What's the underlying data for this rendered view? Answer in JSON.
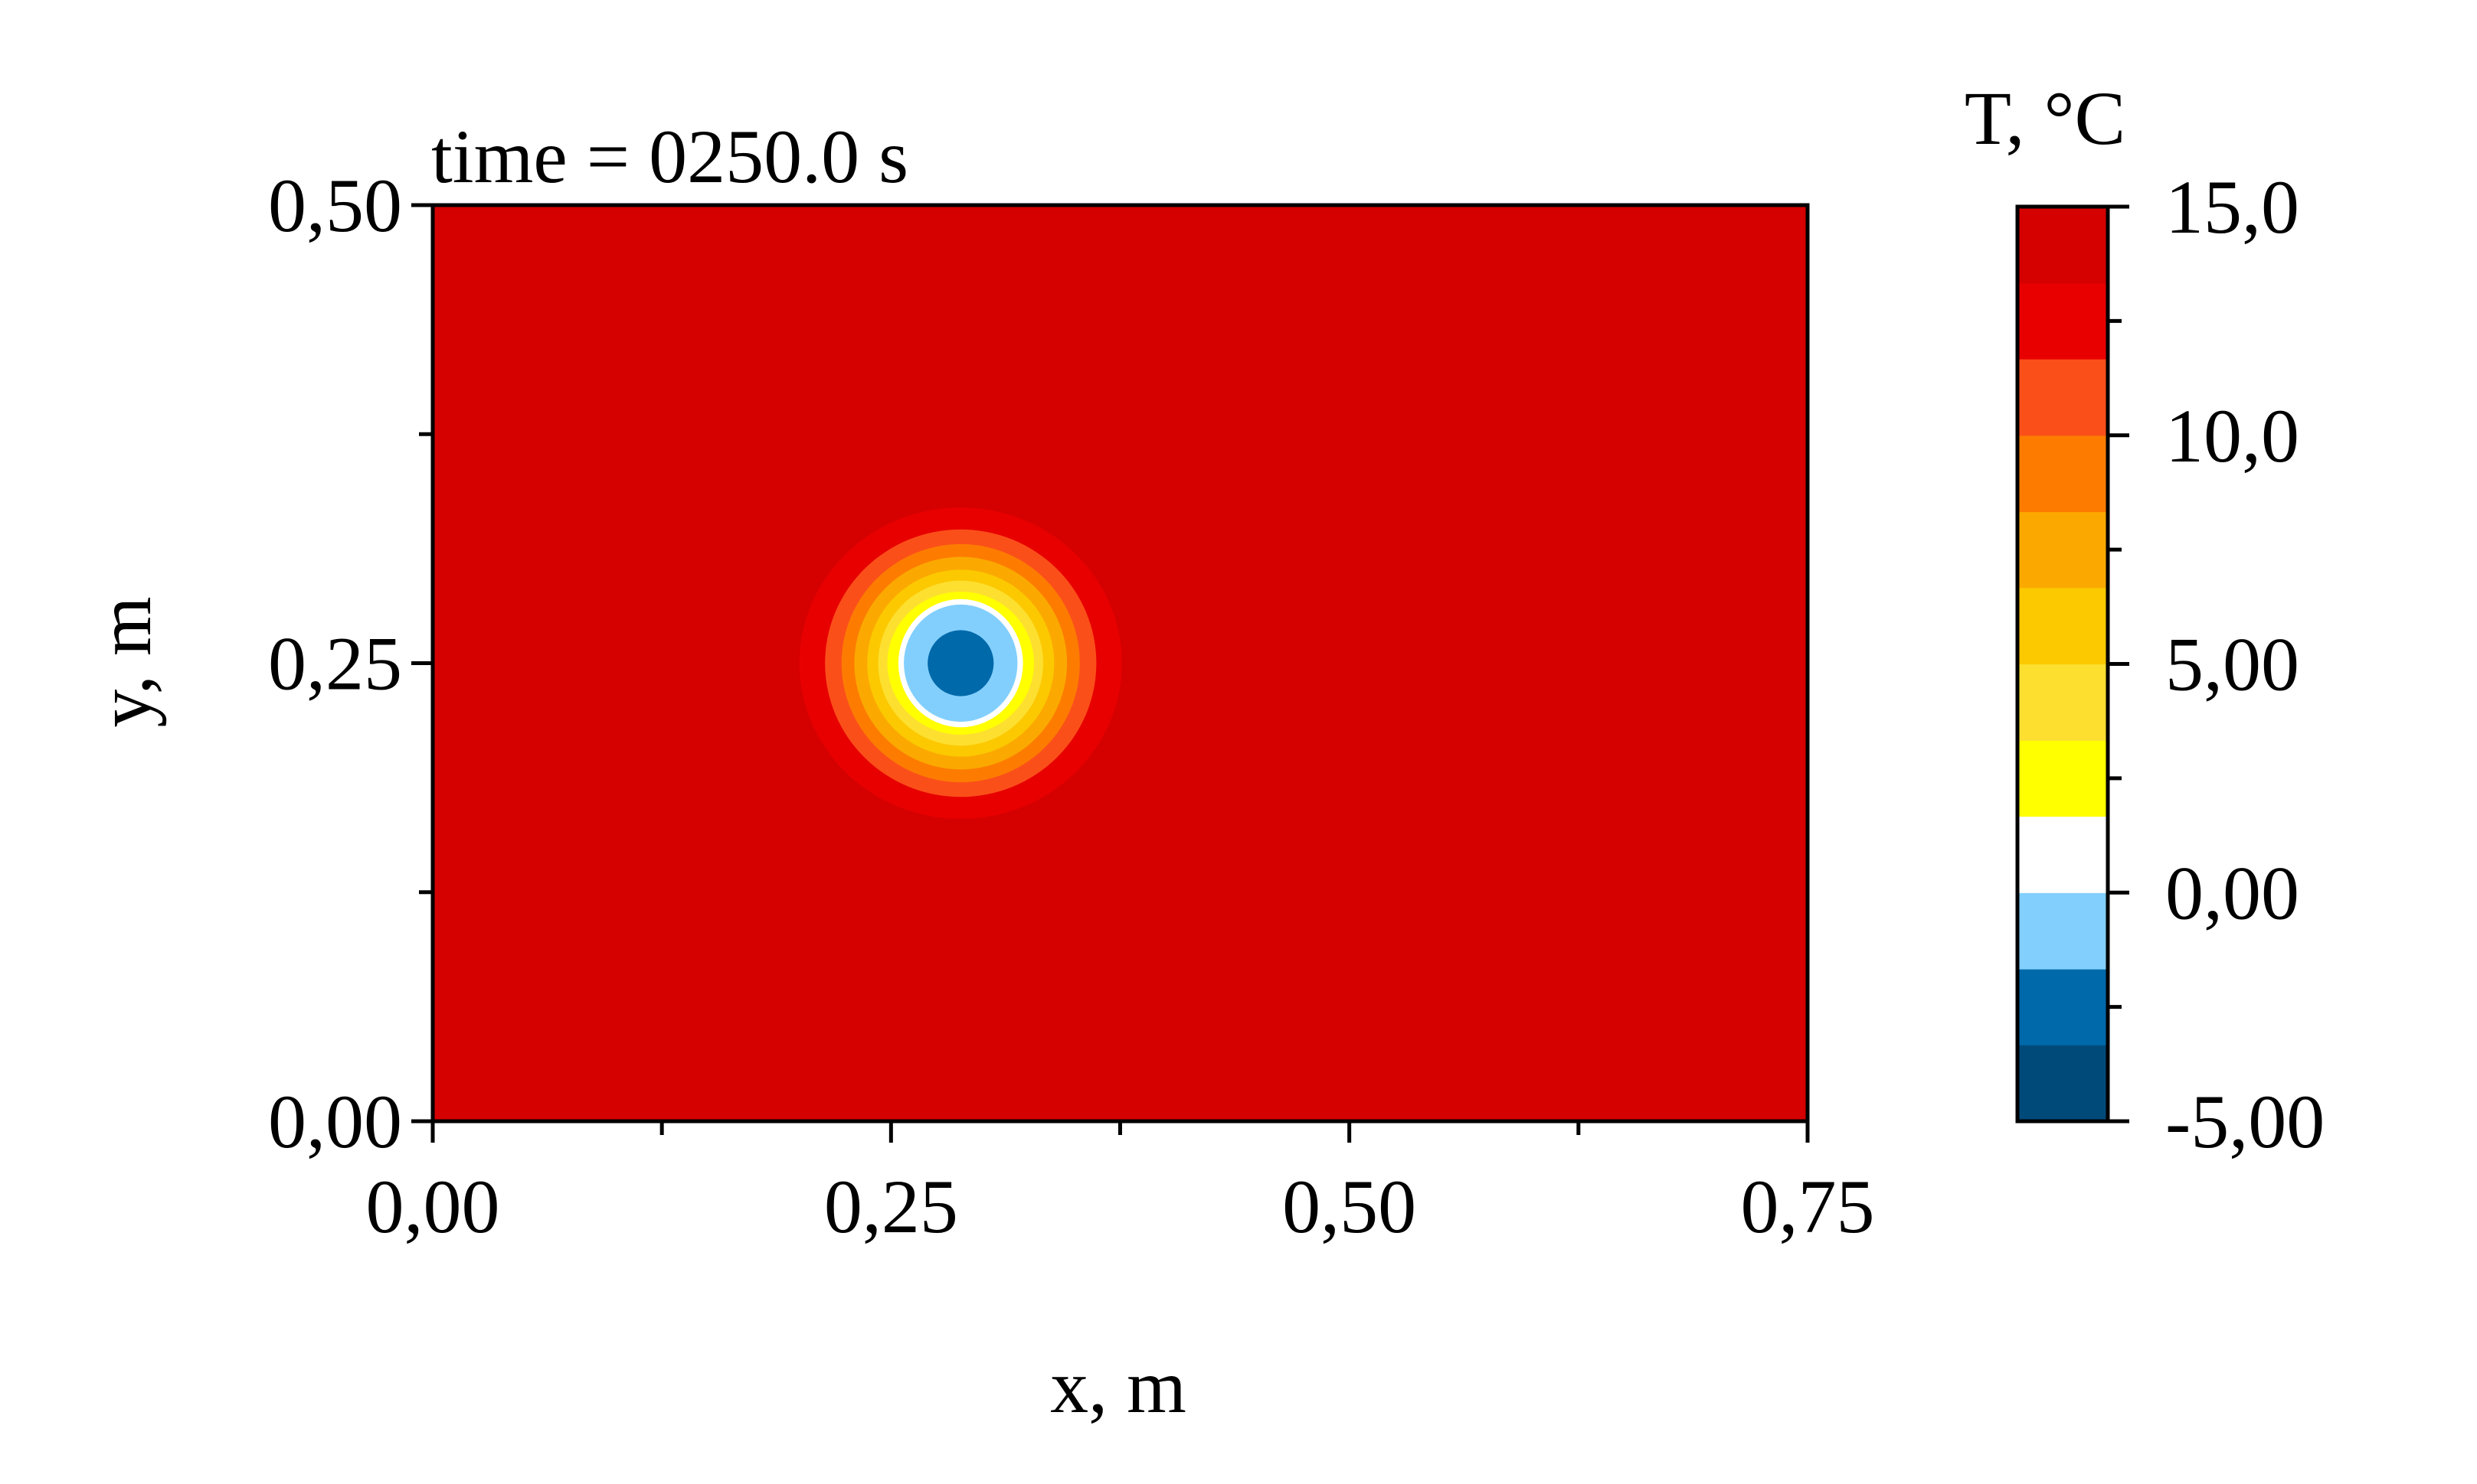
{
  "chart_data": {
    "type": "heatmap",
    "title": "time = 0250.0 s",
    "xlabel": "x, m",
    "ylabel": "y, m",
    "xlim": [
      0,
      0.75
    ],
    "ylim": [
      0,
      0.5
    ],
    "x_major_ticks": [
      {
        "value": 0,
        "label": "0,00"
      },
      {
        "value": 0.25,
        "label": "0,25"
      },
      {
        "value": 0.5,
        "label": "0,50"
      },
      {
        "value": 0.75,
        "label": "0,75"
      }
    ],
    "x_minor_ticks": [
      0.125,
      0.375,
      0.625
    ],
    "y_major_ticks": [
      {
        "value": 0,
        "label": "0,00"
      },
      {
        "value": 0.25,
        "label": "0,25"
      },
      {
        "value": 0.5,
        "label": "0,50"
      }
    ],
    "y_minor_ticks": [
      0.125,
      0.375
    ],
    "background_value": 14,
    "cold_spot": {
      "center": [
        0.288,
        0.25
      ],
      "contours": [
        {
          "level": 13,
          "rx": 0.088,
          "ry": 0.085,
          "color": "#e80000"
        },
        {
          "level": 12,
          "rx": 0.074,
          "ry": 0.073,
          "color": "#fb4f1a"
        },
        {
          "level": 11,
          "rx": 0.065,
          "ry": 0.065,
          "color": "#fd7c00"
        },
        {
          "level": 9,
          "rx": 0.058,
          "ry": 0.058,
          "color": "#fba900"
        },
        {
          "level": 7,
          "rx": 0.051,
          "ry": 0.051,
          "color": "#fcc900"
        },
        {
          "level": 5,
          "rx": 0.045,
          "ry": 0.045,
          "color": "#fddf30"
        },
        {
          "level": 3,
          "rx": 0.04,
          "ry": 0.039,
          "color": "#ffff00"
        },
        {
          "level": 1,
          "rx": 0.034,
          "ry": 0.035,
          "color": "#ffffff"
        },
        {
          "level": -1,
          "rx": 0.031,
          "ry": 0.032,
          "color": "#82cffd"
        },
        {
          "level": -3,
          "rx": 0.018,
          "ry": 0.018,
          "color": "#0069aa"
        }
      ]
    },
    "colorbar": {
      "title": "T, °C",
      "min": -5,
      "max": 15,
      "bands": [
        {
          "from": -5,
          "to": -3.33,
          "color": "#004a7a"
        },
        {
          "from": -3.33,
          "to": -1.67,
          "color": "#0069aa"
        },
        {
          "from": -1.67,
          "to": 0,
          "color": "#82cffd"
        },
        {
          "from": 0,
          "to": 1.67,
          "color": "#ffffff"
        },
        {
          "from": 1.67,
          "to": 3.33,
          "color": "#ffff00"
        },
        {
          "from": 3.33,
          "to": 5,
          "color": "#fddf30"
        },
        {
          "from": 5,
          "to": 6.67,
          "color": "#fcc900"
        },
        {
          "from": 6.67,
          "to": 8.33,
          "color": "#fba900"
        },
        {
          "from": 8.33,
          "to": 10,
          "color": "#fd7c00"
        },
        {
          "from": 10,
          "to": 11.67,
          "color": "#fb4f1a"
        },
        {
          "from": 11.67,
          "to": 13.33,
          "color": "#e80000"
        },
        {
          "from": 13.33,
          "to": 15,
          "color": "#d50000"
        }
      ],
      "ticks": [
        {
          "value": -5,
          "label": "-5,00"
        },
        {
          "value": 0,
          "label": "0,00"
        },
        {
          "value": 5,
          "label": "5,00"
        },
        {
          "value": 10,
          "label": "10,0"
        },
        {
          "value": 15,
          "label": "15,0"
        }
      ],
      "minor_ticks": [
        -2.5,
        2.5,
        7.5,
        12.5
      ]
    },
    "colors": {
      "field": "#d50000",
      "axis": "#000000"
    }
  }
}
